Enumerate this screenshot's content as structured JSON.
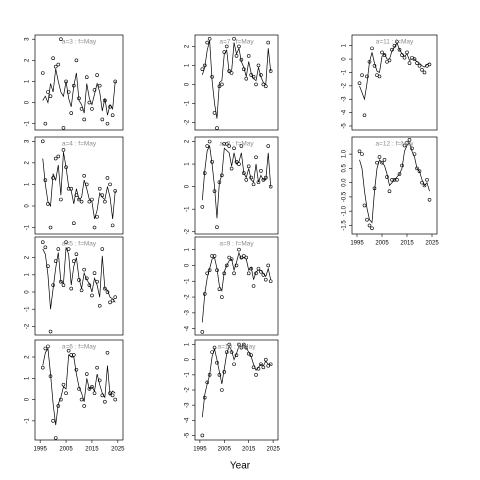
{
  "x_label": "Year",
  "chart_data": [
    {
      "type": "line",
      "title": "a=3 : f=May",
      "x": [
        1996,
        1997,
        1998,
        1999,
        2000,
        2001,
        2002,
        2003,
        2004,
        2005,
        2006,
        2007,
        2008,
        2009,
        2010,
        2011,
        2012,
        2013,
        2014,
        2015,
        2016,
        2017,
        2018,
        2019,
        2020,
        2021,
        2022,
        2023,
        2024
      ],
      "values": [
        1.4,
        -1.0,
        0.5,
        0.3,
        2.1,
        1.7,
        1.8,
        3.0,
        -1.2,
        1.0,
        0.5,
        -0.5,
        0.8,
        2.0,
        0.2,
        -0.3,
        -0.8,
        1.2,
        0.0,
        -0.3,
        0.6,
        1.3,
        0.8,
        -0.8,
        0.1,
        -1.0,
        -0.2,
        -0.6,
        1.0
      ],
      "fitted": [
        0.1,
        0.3,
        0.0,
        0.9,
        0.5,
        1.6,
        1.0,
        0.5,
        0.3,
        1.0,
        0.2,
        -0.2,
        0.8,
        1.4,
        0.1,
        -0.1,
        -0.5,
        0.9,
        0.2,
        -0.1,
        0.4,
        0.9,
        0.5,
        -0.4,
        0.2,
        -0.6,
        -0.1,
        -0.3,
        1.0
      ],
      "xlim": [
        1993,
        2027
      ],
      "ylim": [
        -1.3,
        3.2
      ],
      "yticks": [
        -1,
        0,
        1,
        2,
        3
      ]
    },
    {
      "type": "line",
      "title": "a=4 : f=May",
      "x": [
        1996,
        1997,
        1998,
        1999,
        2000,
        2001,
        2002,
        2003,
        2004,
        2005,
        2006,
        2007,
        2008,
        2009,
        2010,
        2011,
        2012,
        2013,
        2014,
        2015,
        2016,
        2017,
        2018,
        2019,
        2020,
        2021,
        2022,
        2023,
        2024
      ],
      "values": [
        3.0,
        1.2,
        0.1,
        -1.0,
        1.3,
        2.2,
        2.3,
        0.3,
        2.6,
        1.8,
        0.8,
        0.8,
        -0.8,
        0.5,
        0.3,
        0.2,
        1.4,
        1.0,
        0.2,
        0.3,
        -1.0,
        -0.5,
        0.8,
        0.5,
        0.2,
        1.3,
        1.0,
        -0.9,
        0.7
      ],
      "fitted": [
        2.2,
        1.0,
        0.2,
        0.0,
        1.5,
        1.2,
        1.9,
        0.5,
        2.5,
        1.8,
        0.9,
        0.7,
        0.1,
        0.8,
        0.3,
        0.4,
        1.2,
        0.8,
        0.3,
        0.2,
        -0.6,
        -0.2,
        0.6,
        0.4,
        0.3,
        0.9,
        0.4,
        -0.6,
        0.7
      ],
      "xlim": [
        1993,
        2027
      ],
      "ylim": [
        -1.3,
        3.2
      ],
      "yticks": [
        -1,
        0,
        1,
        2,
        3
      ]
    },
    {
      "type": "line",
      "title": "a=5 : f=May",
      "x": [
        1996,
        1997,
        1998,
        1999,
        2000,
        2001,
        2002,
        2003,
        2004,
        2005,
        2006,
        2007,
        2008,
        2009,
        2010,
        2011,
        2012,
        2013,
        2014,
        2015,
        2016,
        2017,
        2018,
        2019,
        2020,
        2021,
        2022,
        2023,
        2024
      ],
      "values": [
        2.9,
        2.6,
        1.5,
        -2.3,
        0.4,
        1.8,
        2.5,
        0.6,
        0.4,
        2.9,
        2.5,
        0.2,
        1.8,
        2.2,
        0.7,
        0.1,
        1.3,
        0.8,
        0.4,
        -0.2,
        1.1,
        0.6,
        -0.8,
        2.5,
        0.2,
        0.0,
        -0.6,
        -0.5,
        -0.3
      ],
      "fitted": [
        2.5,
        2.2,
        1.0,
        -1.0,
        0.2,
        1.4,
        2.3,
        0.6,
        0.5,
        2.6,
        2.2,
        0.4,
        1.5,
        2.0,
        0.8,
        0.2,
        1.1,
        0.7,
        0.5,
        0.0,
        0.8,
        0.4,
        -0.3,
        2.1,
        0.2,
        0.1,
        -0.3,
        -0.4,
        -0.6
      ],
      "xlim": [
        1993,
        2027
      ],
      "ylim": [
        -2.5,
        3.2
      ],
      "yticks": [
        -2,
        -1,
        0,
        1,
        2
      ]
    },
    {
      "type": "line",
      "title": "a=6 : f=May",
      "x": [
        1996,
        1997,
        1998,
        1999,
        2000,
        2001,
        2002,
        2003,
        2004,
        2005,
        2006,
        2007,
        2008,
        2009,
        2010,
        2011,
        2012,
        2013,
        2014,
        2015,
        2016,
        2017,
        2018,
        2019,
        2020,
        2021,
        2022,
        2023,
        2024
      ],
      "values": [
        1.5,
        2.4,
        2.5,
        1.1,
        -1.0,
        -1.8,
        -0.3,
        0.0,
        0.7,
        0.3,
        2.3,
        2.1,
        2.1,
        1.4,
        0.5,
        0.0,
        -0.3,
        1.2,
        0.5,
        0.6,
        0.3,
        1.5,
        0.9,
        0.2,
        -0.1,
        2.2,
        0.3,
        0.2,
        0.0
      ],
      "fitted": [
        1.6,
        2.2,
        2.4,
        1.2,
        -0.2,
        -1.2,
        -0.2,
        0.1,
        0.6,
        0.5,
        2.1,
        2.0,
        2.0,
        1.2,
        0.6,
        0.3,
        -0.1,
        1.0,
        0.5,
        0.6,
        0.4,
        1.2,
        0.7,
        0.3,
        0.1,
        1.6,
        0.2,
        0.4,
        0.3
      ],
      "xlim": [
        1993,
        2027
      ],
      "xticks": [
        1995,
        2005,
        2015,
        2025
      ],
      "ylim": [
        -1.9,
        2.8
      ],
      "yticks": [
        -1,
        0,
        1,
        2
      ]
    },
    {
      "type": "line",
      "title": "a=7 : f=May",
      "x": [
        1996,
        1997,
        1998,
        1999,
        2000,
        2001,
        2002,
        2003,
        2004,
        2005,
        2006,
        2007,
        2008,
        2009,
        2010,
        2011,
        2012,
        2013,
        2014,
        2015,
        2016,
        2017,
        2018,
        2019,
        2020,
        2021,
        2022,
        2023,
        2024
      ],
      "values": [
        0.8,
        1.0,
        2.2,
        2.4,
        0.4,
        -1.5,
        -2.3,
        -0.1,
        0.0,
        1.7,
        2.0,
        0.7,
        0.6,
        2.4,
        1.5,
        2.0,
        1.3,
        0.8,
        0.3,
        1.5,
        0.5,
        0.4,
        0.0,
        1.0,
        0.5,
        0.0,
        -0.1,
        2.2,
        0.7
      ],
      "fitted": [
        0.5,
        0.9,
        1.8,
        2.3,
        0.2,
        -1.0,
        -1.8,
        0.1,
        0.2,
        1.6,
        1.8,
        0.6,
        0.7,
        2.2,
        1.6,
        1.9,
        1.2,
        0.9,
        0.4,
        1.2,
        0.6,
        0.3,
        0.2,
        0.9,
        0.4,
        0.1,
        0.0,
        1.9,
        0.7
      ],
      "xlim": [
        1993,
        2027
      ],
      "ylim": [
        -2.4,
        2.6
      ],
      "yticks": [
        -2,
        -1,
        0,
        1,
        2
      ]
    },
    {
      "type": "line",
      "title": "a=8 : f=May",
      "x": [
        1996,
        1997,
        1998,
        1999,
        2000,
        2001,
        2002,
        2003,
        2004,
        2005,
        2006,
        2007,
        2008,
        2009,
        2010,
        2011,
        2012,
        2013,
        2014,
        2015,
        2016,
        2017,
        2018,
        2019,
        2020,
        2021,
        2022,
        2023,
        2024
      ],
      "values": [
        -0.9,
        0.6,
        1.8,
        2.0,
        1.1,
        -0.2,
        -1.8,
        0.2,
        0.5,
        1.9,
        1.9,
        1.8,
        0.8,
        1.7,
        1.1,
        1.0,
        1.8,
        0.6,
        0.3,
        0.9,
        0.4,
        0.1,
        1.3,
        0.2,
        0.7,
        0.3,
        0.4,
        1.8,
        0.0
      ],
      "fitted": [
        -0.6,
        0.7,
        1.6,
        1.8,
        1.0,
        0.0,
        -1.4,
        0.2,
        0.5,
        1.7,
        1.6,
        1.5,
        0.9,
        1.5,
        1.0,
        1.1,
        1.5,
        0.6,
        0.4,
        0.8,
        0.3,
        0.2,
        1.0,
        0.2,
        0.5,
        0.3,
        0.3,
        1.5,
        0.0
      ],
      "xlim": [
        1993,
        2027
      ],
      "ylim": [
        -2.1,
        2.2
      ],
      "yticks": [
        -2,
        -1,
        0,
        1,
        2
      ]
    },
    {
      "type": "line",
      "title": "a=9 : f=May",
      "x": [
        1996,
        1997,
        1998,
        1999,
        2000,
        2001,
        2002,
        2003,
        2004,
        2005,
        2006,
        2007,
        2008,
        2009,
        2010,
        2011,
        2012,
        2013,
        2014,
        2015,
        2016,
        2017,
        2018,
        2019,
        2020,
        2021,
        2022,
        2023,
        2024
      ],
      "values": [
        -4.2,
        -1.8,
        -0.5,
        -0.3,
        0.6,
        0.6,
        -0.3,
        -1.5,
        -2.0,
        -0.5,
        0.0,
        0.5,
        0.4,
        -0.5,
        0.0,
        1.0,
        0.5,
        0.6,
        0.5,
        -0.5,
        -0.2,
        -1.3,
        -0.5,
        -0.2,
        -0.4,
        -0.6,
        -0.9,
        0.0,
        -1.0
      ],
      "fitted": [
        -3.6,
        -1.8,
        -0.8,
        -0.2,
        0.4,
        0.5,
        -0.2,
        -1.3,
        -1.6,
        -0.4,
        0.0,
        0.3,
        0.4,
        -0.3,
        0.2,
        0.8,
        0.4,
        0.5,
        0.4,
        -0.3,
        -0.1,
        -0.9,
        -0.4,
        -0.3,
        -0.3,
        -0.5,
        -0.7,
        -0.2,
        -0.9
      ],
      "xlim": [
        1993,
        2027
      ],
      "ylim": [
        -4.4,
        1.8
      ],
      "yticks": [
        -4,
        -3,
        -2,
        -1,
        0,
        1
      ]
    },
    {
      "type": "line",
      "title": "a=10 : f=May",
      "x": [
        1996,
        1997,
        1998,
        1999,
        2000,
        2001,
        2002,
        2003,
        2004,
        2005,
        2006,
        2007,
        2008,
        2009,
        2010,
        2011,
        2012,
        2013,
        2014,
        2015,
        2016,
        2017,
        2018,
        2019,
        2020,
        2021,
        2022,
        2023,
        2024
      ],
      "values": [
        -5.0,
        -2.5,
        -1.5,
        -1.0,
        0.5,
        0.8,
        -0.2,
        -1.0,
        -2.0,
        -0.8,
        0.5,
        1.0,
        0.5,
        -0.3,
        0.3,
        1.0,
        0.8,
        1.0,
        0.8,
        0.4,
        0.3,
        -0.5,
        -1.0,
        -0.6,
        -0.3,
        -0.5,
        0.0,
        -0.4,
        -0.3
      ],
      "fitted": [
        -3.8,
        -2.3,
        -1.6,
        -1.0,
        0.2,
        0.7,
        0.0,
        -0.8,
        -1.6,
        -0.6,
        0.4,
        0.9,
        0.6,
        0.0,
        0.4,
        0.9,
        0.9,
        1.0,
        0.8,
        0.5,
        0.2,
        -0.3,
        -0.7,
        -0.5,
        -0.3,
        -0.4,
        -0.1,
        -0.3,
        -0.3
      ],
      "xlim": [
        1993,
        2027
      ],
      "xticks": [
        1995,
        2005,
        2015,
        2025
      ],
      "ylim": [
        -5.3,
        1.3
      ],
      "yticks": [
        -5,
        -4,
        -3,
        -2,
        -1,
        0,
        1
      ]
    },
    {
      "type": "line",
      "title": "a=11 : f=May",
      "x": [
        1996,
        1997,
        1998,
        1999,
        2000,
        2001,
        2002,
        2003,
        2004,
        2005,
        2006,
        2007,
        2008,
        2009,
        2010,
        2011,
        2012,
        2013,
        2014,
        2015,
        2016,
        2017,
        2018,
        2019,
        2020,
        2021,
        2022,
        2023,
        2024
      ],
      "values": [
        -1.8,
        -1.2,
        -4.2,
        -1.3,
        -0.2,
        0.8,
        -0.5,
        -1.2,
        -1.3,
        0.5,
        0.3,
        -0.2,
        -0.1,
        0.7,
        1.0,
        1.3,
        0.7,
        0.3,
        0.1,
        0.5,
        -0.3,
        0.1,
        0.0,
        -0.3,
        -0.5,
        -0.8,
        -1.0,
        -0.5,
        -0.4
      ],
      "fitted": [
        -2.0,
        -2.5,
        -3.0,
        -1.8,
        -0.2,
        0.5,
        -0.3,
        -0.9,
        -1.0,
        0.2,
        0.4,
        0.0,
        0.0,
        0.6,
        0.9,
        1.2,
        0.7,
        0.4,
        0.2,
        0.4,
        -0.1,
        0.0,
        0.0,
        -0.2,
        -0.3,
        -0.5,
        -0.6,
        -0.4,
        -0.3
      ],
      "xlim": [
        1993,
        2027
      ],
      "ylim": [
        -5.3,
        1.8
      ],
      "yticks": [
        -5,
        -4,
        -3,
        -2,
        -1,
        0,
        1
      ]
    },
    {
      "type": "line",
      "title": "a=12 : f=May",
      "x": [
        1996,
        1997,
        1998,
        1999,
        2000,
        2001,
        2002,
        2003,
        2004,
        2005,
        2006,
        2007,
        2008,
        2009,
        2010,
        2011,
        2012,
        2013,
        2014,
        2015,
        2016,
        2017,
        2018,
        2019,
        2020,
        2021,
        2022,
        2023,
        2024
      ],
      "values": [
        1.1,
        1.0,
        -0.8,
        -1.3,
        -1.5,
        -1.6,
        -0.2,
        0.7,
        0.9,
        0.7,
        0.8,
        0.2,
        -0.3,
        0.1,
        0.1,
        0.1,
        0.3,
        0.6,
        1.3,
        1.4,
        1.5,
        1.2,
        1.0,
        0.5,
        0.4,
        0.0,
        -0.1,
        0.1,
        -0.6
      ],
      "fitted": [
        0.8,
        0.5,
        -0.3,
        -0.9,
        -1.3,
        -1.4,
        -0.3,
        0.5,
        0.8,
        0.7,
        0.6,
        0.3,
        -0.1,
        0.0,
        0.1,
        0.2,
        0.3,
        0.5,
        1.1,
        1.3,
        1.4,
        1.1,
        0.9,
        0.5,
        0.4,
        0.1,
        -0.1,
        0.0,
        -0.3
      ],
      "xlim": [
        1993,
        2027
      ],
      "xticks": [
        1995,
        2005,
        2015,
        2025
      ],
      "ylim": [
        -1.8,
        1.6
      ],
      "yticks": [
        -1.5,
        {
          "value": -1,
          "label": "-1.0"
        },
        -0.5,
        {
          "value": 0,
          "label": "0.0"
        },
        0.5,
        {
          "value": 1,
          "label": "1.0"
        }
      ]
    }
  ]
}
